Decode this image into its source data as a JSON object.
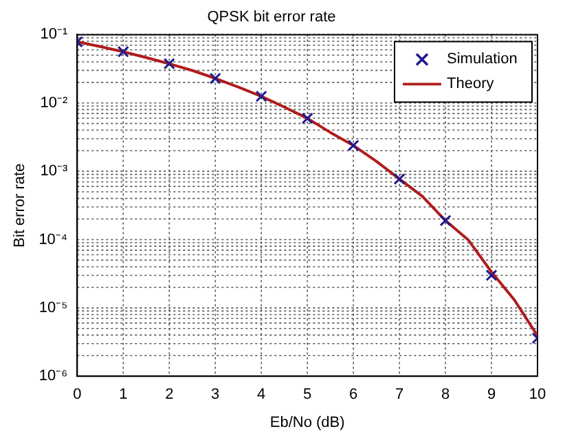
{
  "chart_data": {
    "type": "line",
    "title": "QPSK bit error rate",
    "xlabel": "Eb/No (dB)",
    "ylabel": "Bit error rate",
    "xlim": [
      0,
      10
    ],
    "xticks": [
      0,
      1,
      2,
      3,
      4,
      5,
      6,
      7,
      8,
      9,
      10
    ],
    "ylim": [
      1e-06,
      0.1
    ],
    "yticks": [
      {
        "value": 1e-06,
        "label": "10⁻⁶"
      },
      {
        "value": 1e-05,
        "label": "10⁻⁵"
      },
      {
        "value": 0.0001,
        "label": "10⁻⁴"
      },
      {
        "value": 0.001,
        "label": "10⁻³"
      },
      {
        "value": 0.01,
        "label": "10⁻²"
      },
      {
        "value": 0.1,
        "label": "10⁻¹"
      }
    ],
    "log": "y",
    "grid": true,
    "legend": "top right",
    "series": [
      {
        "name": "Simulation",
        "type": "scatter",
        "marker": "cross",
        "color": "#1f1a8c",
        "x": [
          0,
          1,
          2,
          3,
          4,
          5,
          6,
          7,
          8,
          9,
          10
        ],
        "values": [
          0.0786,
          0.0563,
          0.0375,
          0.0229,
          0.0125,
          0.00595,
          0.00239,
          0.00077,
          0.00019,
          3e-05,
          3.6e-06
        ]
      },
      {
        "name": "Theory",
        "type": "line",
        "line_style": "solid",
        "color": "#b01c1c",
        "x": [
          0,
          0.5,
          1,
          1.5,
          2,
          2.5,
          3,
          3.5,
          4,
          4.5,
          5,
          5.5,
          6,
          6.5,
          7,
          7.5,
          8,
          8.5,
          9,
          9.5,
          10
        ],
        "values": [
          0.0786,
          0.067,
          0.0563,
          0.0462,
          0.0375,
          0.0299,
          0.0229,
          0.0171,
          0.0125,
          0.0087,
          0.00595,
          0.0037,
          0.00239,
          0.0014,
          0.00077,
          0.00043,
          0.00019,
          9.8e-05,
          3.36e-05,
          1.3e-05,
          3.9e-06
        ]
      }
    ]
  }
}
